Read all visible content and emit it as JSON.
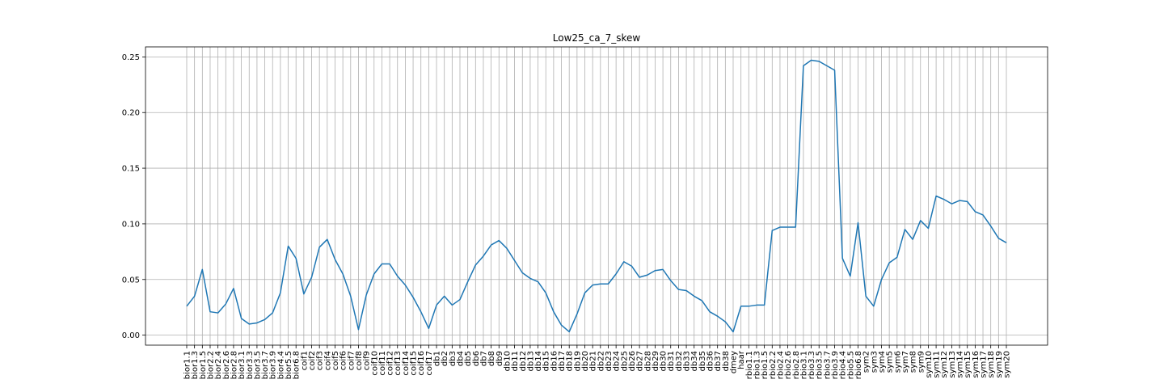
{
  "chart_data": {
    "type": "line",
    "title": "Low25_ca_7_skew",
    "xlabel": "",
    "ylabel": "",
    "grid": true,
    "ylim": [
      -0.009,
      0.259
    ],
    "yticks": [
      "0.00",
      "0.05",
      "0.10",
      "0.15",
      "0.20",
      "0.25"
    ],
    "line_color": "#1f77b4",
    "categories": [
      "bior1.1",
      "bior1.3",
      "bior1.5",
      "bior2.2",
      "bior2.4",
      "bior2.6",
      "bior2.8",
      "bior3.1",
      "bior3.3",
      "bior3.5",
      "bior3.7",
      "bior3.9",
      "bior4.4",
      "bior5.5",
      "bior6.8",
      "coif1",
      "coif2",
      "coif3",
      "coif4",
      "coif5",
      "coif6",
      "coif7",
      "coif8",
      "coif9",
      "coif10",
      "coif11",
      "coif12",
      "coif13",
      "coif14",
      "coif15",
      "coif16",
      "coif17",
      "db1",
      "db2",
      "db3",
      "db4",
      "db5",
      "db6",
      "db7",
      "db8",
      "db9",
      "db10",
      "db11",
      "db12",
      "db13",
      "db14",
      "db15",
      "db16",
      "db17",
      "db18",
      "db19",
      "db20",
      "db21",
      "db22",
      "db23",
      "db24",
      "db25",
      "db26",
      "db27",
      "db28",
      "db29",
      "db30",
      "db31",
      "db32",
      "db33",
      "db34",
      "db35",
      "db36",
      "db37",
      "db38",
      "dmey",
      "haar",
      "rbio1.1",
      "rbio1.3",
      "rbio1.5",
      "rbio2.2",
      "rbio2.4",
      "rbio2.6",
      "rbio2.8",
      "rbio3.1",
      "rbio3.3",
      "rbio3.5",
      "rbio3.7",
      "rbio3.9",
      "rbio4.4",
      "rbio5.5",
      "rbio6.8",
      "sym2",
      "sym3",
      "sym4",
      "sym5",
      "sym6",
      "sym7",
      "sym8",
      "sym9",
      "sym10",
      "sym11",
      "sym12",
      "sym13",
      "sym14",
      "sym15",
      "sym16",
      "sym17",
      "sym18",
      "sym19",
      "sym20"
    ],
    "series": [
      {
        "values": [
          0.026,
          0.035,
          0.059,
          0.021,
          0.02,
          0.028,
          0.042,
          0.015,
          0.01,
          0.011,
          0.014,
          0.02,
          0.038,
          0.08,
          0.069,
          0.037,
          0.052,
          0.079,
          0.086,
          0.068,
          0.055,
          0.035,
          0.005,
          0.036,
          0.055,
          0.064,
          0.064,
          0.053,
          0.045,
          0.034,
          0.021,
          0.006,
          0.027,
          0.035,
          0.027,
          0.032,
          0.048,
          0.063,
          0.071,
          0.081,
          0.085,
          0.078,
          0.067,
          0.056,
          0.051,
          0.048,
          0.038,
          0.021,
          0.009,
          0.003,
          0.019,
          0.038,
          0.045,
          0.046,
          0.046,
          0.055,
          0.066,
          0.062,
          0.052,
          0.054,
          0.058,
          0.059,
          0.049,
          0.041,
          0.04,
          0.035,
          0.031,
          0.021,
          0.017,
          0.012,
          0.003,
          0.026,
          0.026,
          0.027,
          0.027,
          0.094,
          0.097,
          0.097,
          0.097,
          0.242,
          0.247,
          0.246,
          0.242,
          0.238,
          0.069,
          0.053,
          0.101,
          0.035,
          0.026,
          0.05,
          0.065,
          0.07,
          0.095,
          0.086,
          0.103,
          0.096,
          0.125,
          0.122,
          0.118,
          0.121,
          0.12,
          0.111,
          0.108,
          0.098,
          0.087,
          0.083
        ]
      }
    ]
  }
}
